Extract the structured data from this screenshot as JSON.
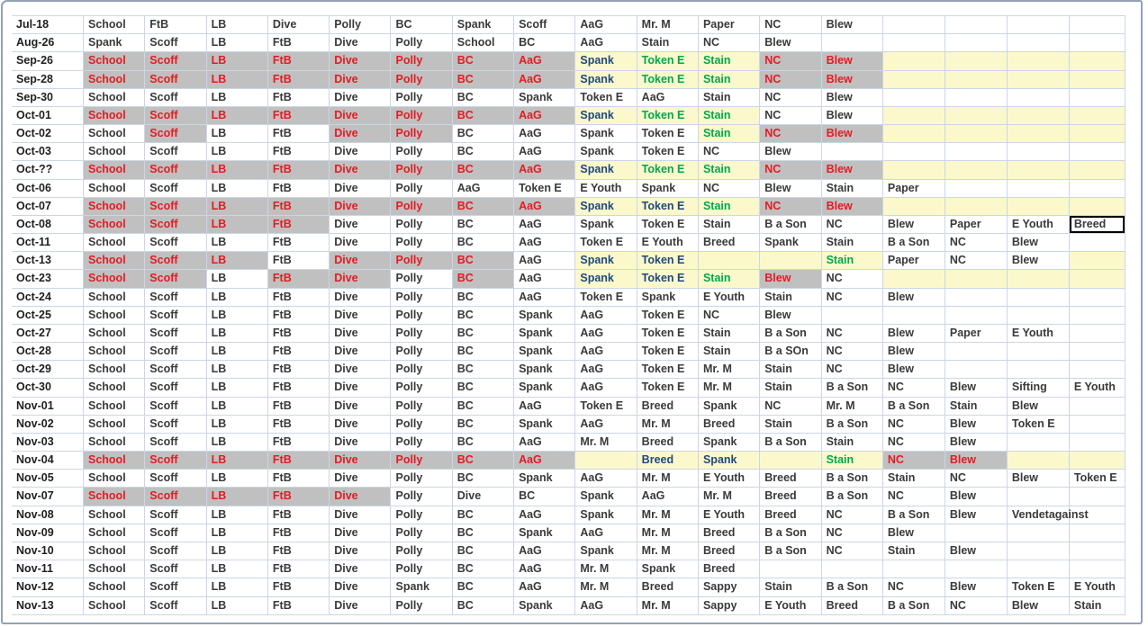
{
  "colors": {
    "red_text": "#e41b23",
    "gray_fill": "#c0c0c0",
    "yellow_fill": "#fbf8cc",
    "green_text": "#00a84f",
    "navy_text": "#1f497d",
    "ink": "#3a3a3a",
    "date_ink": "#1f1f1f",
    "gridline": "#ccd6e5",
    "window_border": "#92a1b5",
    "selection_border": "#000000"
  },
  "selected_cell": {
    "row": "Oct-08",
    "label": "Breed"
  },
  "sheet": {
    "columns": 17,
    "cell_style_codes": {
      "r": "red-on-gray",
      "g": "green-on-yellow",
      "n": "navy-on-yellow",
      "y": "empty-yellow",
      "sel": "selected"
    },
    "rows": [
      {
        "date": "Jul-18",
        "cells": [
          "School",
          "FtB",
          "LB",
          "Dive",
          "Polly",
          "BC",
          "Spank",
          "Scoff",
          "AaG",
          "Mr. M",
          "Paper",
          "NC",
          "Blew",
          "",
          "",
          "",
          ""
        ]
      },
      {
        "date": "Aug-26",
        "cells": [
          "Spank",
          "Scoff",
          "LB",
          "FtB",
          "Dive",
          "Polly",
          "School",
          "BC",
          "AaG",
          "Stain",
          "NC",
          "Blew",
          "",
          "",
          "",
          "",
          ""
        ]
      },
      {
        "date": "Sep-26",
        "cells": [
          "School|r",
          "Scoff|r",
          "LB|r",
          "FtB|r",
          "Dive|r",
          "Polly|r",
          "BC|r",
          "AaG|r",
          "Spank|n",
          "Token E|g",
          "Stain|g",
          "NC|r",
          "Blew|r",
          "|y",
          "|y",
          "|y",
          "|y"
        ]
      },
      {
        "date": "Sep-28",
        "cells": [
          "School|r",
          "Scoff|r",
          "LB|r",
          "FtB|r",
          "Dive|r",
          "Polly|r",
          "BC|r",
          "AaG|r",
          "Spank|n",
          "Token E|g",
          "Stain|g",
          "NC|r",
          "Blew|r",
          "|y",
          "|y",
          "|y",
          "|y"
        ]
      },
      {
        "date": "Sep-30",
        "cells": [
          "School",
          "Scoff",
          "LB",
          "FtB",
          "Dive",
          "Polly",
          "BC",
          "Spank",
          "Token E",
          "AaG",
          "Stain",
          "NC",
          "Blew",
          "",
          "",
          "",
          ""
        ]
      },
      {
        "date": "Oct-01",
        "cells": [
          "School|r",
          "Scoff|r",
          "LB|r",
          "FtB|r",
          "Dive|r",
          "Polly|r",
          "BC|r",
          "AaG|r",
          "Spank|n",
          "Token E|g",
          "Stain|g",
          "NC",
          "Blew",
          "|y",
          "|y",
          "|y",
          "|y"
        ]
      },
      {
        "date": "Oct-02",
        "cells": [
          "School",
          "Scoff|r",
          "LB",
          "FtB",
          "Dive|r",
          "Polly|r",
          "BC",
          "AaG",
          "Spank",
          "Token E",
          "Stain|g",
          "NC|r",
          "Blew|r",
          "|y",
          "|y",
          "|y",
          "|y"
        ]
      },
      {
        "date": "Oct-03",
        "cells": [
          "School",
          "Scoff",
          "LB",
          "FtB",
          "Dive",
          "Polly",
          "BC",
          "AaG",
          "Spank",
          "Token E",
          "NC",
          "Blew",
          "",
          "",
          "",
          "",
          ""
        ]
      },
      {
        "date": "Oct-??",
        "cells": [
          "School|r",
          "Scoff|r",
          "LB|r",
          "FtB|r",
          "Dive|r",
          "Polly|r",
          "BC|r",
          "AaG|r",
          "Spank|n",
          "Token E|g",
          "Stain|g",
          "NC|r",
          "Blew|r",
          "|y",
          "|y",
          "|y",
          "|y"
        ]
      },
      {
        "date": "Oct-06",
        "cells": [
          "School",
          "Scoff",
          "LB",
          "FtB",
          "Dive",
          "Polly",
          "AaG",
          "Token E",
          "E Youth",
          "Spank",
          "NC",
          "Blew",
          "Stain",
          "Paper",
          "",
          "",
          ""
        ]
      },
      {
        "date": "Oct-07",
        "cells": [
          "School|r",
          "Scoff|r",
          "LB|r",
          "FtB|r",
          "Dive|r",
          "Polly|r",
          "BC|r",
          "AaG|r",
          "Spank|n",
          "Token E|n",
          "Stain|g",
          "NC|r",
          "Blew|r",
          "|y",
          "|y",
          "|y",
          "|y"
        ]
      },
      {
        "date": "Oct-08",
        "cells": [
          "School|r",
          "Scoff|r",
          "LB|r",
          "FtB|r",
          "Dive",
          "Polly",
          "BC",
          "AaG",
          "Spank",
          "Token E",
          "Stain",
          "B a Son",
          "NC",
          "Blew",
          "Paper",
          "E Youth",
          "Breed|sel"
        ]
      },
      {
        "date": "Oct-11",
        "cells": [
          "School",
          "Scoff",
          "LB",
          "FtB",
          "Dive",
          "Polly",
          "BC",
          "AaG",
          "Token E",
          "E Youth",
          "Breed",
          "Spank",
          "Stain",
          "B a Son",
          "NC",
          "Blew",
          ""
        ]
      },
      {
        "date": "Oct-13",
        "cells": [
          "School|r",
          "Scoff|r",
          "LB|r",
          "FtB",
          "Dive|r",
          "Polly|r",
          "BC|r",
          "AaG",
          "Spank|n",
          "Token E|n",
          "|y",
          "|y",
          "Stain|g",
          "Paper",
          "NC",
          "Blew",
          "|y"
        ]
      },
      {
        "date": "Oct-23",
        "cells": [
          "School|r",
          "Scoff|r",
          "LB",
          "FtB|r",
          "Dive|r",
          "Polly",
          "BC|r",
          "AaG",
          "Spank|n",
          "Token E|n",
          "Stain|g",
          "Blew|r",
          "NC",
          "|y",
          "|y",
          "|y",
          "|y"
        ]
      },
      {
        "date": "Oct-24",
        "cells": [
          "School",
          "Scoff",
          "LB",
          "FtB",
          "Dive",
          "Polly",
          "BC",
          "AaG",
          "Token E",
          "Spank",
          "E Youth",
          "Stain",
          "NC",
          "Blew",
          "",
          "",
          ""
        ]
      },
      {
        "date": "Oct-25",
        "cells": [
          "School",
          "Scoff",
          "LB",
          "FtB",
          "Dive",
          "Polly",
          "BC",
          "Spank",
          "AaG",
          "Token E",
          "NC",
          "Blew",
          "",
          "",
          "",
          "",
          ""
        ]
      },
      {
        "date": "Oct-27",
        "cells": [
          "School",
          "Scoff",
          "LB",
          "FtB",
          "Dive",
          "Polly",
          "BC",
          "Spank",
          "AaG",
          "Token E",
          "Stain",
          "B a Son",
          "NC",
          "Blew",
          "Paper",
          "E Youth",
          ""
        ]
      },
      {
        "date": "Oct-28",
        "cells": [
          "School",
          "Scoff",
          "LB",
          "FtB",
          "Dive",
          "Polly",
          "BC",
          "Spank",
          "AaG",
          "Token E",
          "Stain",
          "B a SOn",
          "NC",
          "Blew",
          "",
          "",
          ""
        ]
      },
      {
        "date": "Oct-29",
        "cells": [
          "School",
          "Scoff",
          "LB",
          "FtB",
          "Dive",
          "Polly",
          "BC",
          "Spank",
          "AaG",
          "Token E",
          "Mr. M",
          "Stain",
          "NC",
          "Blew",
          "",
          "",
          ""
        ]
      },
      {
        "date": "Oct-30",
        "cells": [
          "School",
          "Scoff",
          "LB",
          "FtB",
          "Dive",
          "Polly",
          "BC",
          "Spank",
          "AaG",
          "Token E",
          "Mr. M",
          "Stain",
          "B a Son",
          "NC",
          "Blew",
          "Sifting",
          "E Youth"
        ]
      },
      {
        "date": "Nov-01",
        "cells": [
          "School",
          "Scoff",
          "LB",
          "FtB",
          "Dive",
          "Polly",
          "BC",
          "AaG",
          "Token E",
          "Breed",
          "Spank",
          "NC",
          "Mr. M",
          "B a Son",
          "Stain",
          "Blew",
          ""
        ]
      },
      {
        "date": "Nov-02",
        "cells": [
          "School",
          "Scoff",
          "LB",
          "FtB",
          "Dive",
          "Polly",
          "BC",
          "Spank",
          "AaG",
          "Mr. M",
          "Breed",
          "Stain",
          "B a Son",
          "NC",
          "Blew",
          "Token E",
          ""
        ]
      },
      {
        "date": "Nov-03",
        "cells": [
          "School",
          "Scoff",
          "LB",
          "FtB",
          "Dive",
          "Polly",
          "BC",
          "AaG",
          "Mr. M",
          "Breed",
          "Spank",
          "B a Son",
          "Stain",
          "NC",
          "Blew",
          "",
          ""
        ]
      },
      {
        "date": "Nov-04",
        "cells": [
          "School|r",
          "Scoff|r",
          "LB|r",
          "FtB|r",
          "Dive|r",
          "Polly|r",
          "BC|r",
          "AaG|r",
          "|y",
          "Breed|n",
          "Spank|n",
          "|y",
          "Stain|g",
          "NC|r",
          "Blew|r",
          "|y",
          "|y"
        ]
      },
      {
        "date": "Nov-05",
        "cells": [
          "School",
          "Scoff",
          "LB",
          "FtB",
          "Dive",
          "Polly",
          "BC",
          "Spank",
          "AaG",
          "Mr. M",
          "E Youth",
          "Breed",
          "B a Son",
          "Stain",
          "NC",
          "Blew",
          "Token E"
        ]
      },
      {
        "date": "Nov-07",
        "cells": [
          "School|r",
          "Scoff|r",
          "LB|r",
          "FtB|r",
          "Dive|r",
          "Polly",
          "Dive",
          "BC",
          "Spank",
          "AaG",
          "Mr. M",
          "Breed",
          "B a Son",
          "NC",
          "Blew",
          "",
          ""
        ]
      },
      {
        "date": "Nov-08",
        "cells": [
          "School",
          "Scoff",
          "LB",
          "FtB",
          "Dive",
          "Polly",
          "BC",
          "AaG",
          "Spank",
          "Mr. M",
          "E Youth",
          "Breed",
          "NC",
          "B a Son",
          "Blew",
          "Vendetagainst",
          ""
        ]
      },
      {
        "date": "Nov-09",
        "cells": [
          "School",
          "Scoff",
          "LB",
          "FtB",
          "Dive",
          "Polly",
          "BC",
          "Spank",
          "AaG",
          "Mr. M",
          "Breed",
          "B a Son",
          "NC",
          "Blew",
          "",
          "",
          ""
        ]
      },
      {
        "date": "Nov-10",
        "cells": [
          "School",
          "Scoff",
          "LB",
          "FtB",
          "Dive",
          "Polly",
          "BC",
          "AaG",
          "Spank",
          "Mr. M",
          "Breed",
          "B a Son",
          "NC",
          "Stain",
          "Blew",
          "",
          ""
        ]
      },
      {
        "date": "Nov-11",
        "cells": [
          "School",
          "Scoff",
          "LB",
          "FtB",
          "Dive",
          "Polly",
          "BC",
          "AaG",
          "Mr. M",
          "Spank",
          "Breed",
          "",
          "",
          "",
          "",
          "",
          ""
        ]
      },
      {
        "date": "Nov-12",
        "cells": [
          "School",
          "Scoff",
          "LB",
          "FtB",
          "Dive",
          "Spank",
          "BC",
          "AaG",
          "Mr. M",
          "Breed",
          "Sappy",
          "Stain",
          "B a Son",
          "NC",
          "Blew",
          "Token E",
          "E Youth"
        ]
      },
      {
        "date": "Nov-13",
        "cells": [
          "School",
          "Scoff",
          "LB",
          "FtB",
          "Dive",
          "Polly",
          "BC",
          "Spank",
          "AaG",
          "Mr. M",
          "Sappy",
          "E Youth",
          "Breed",
          "B a Son",
          "NC",
          "Blew",
          "Stain"
        ]
      }
    ]
  }
}
